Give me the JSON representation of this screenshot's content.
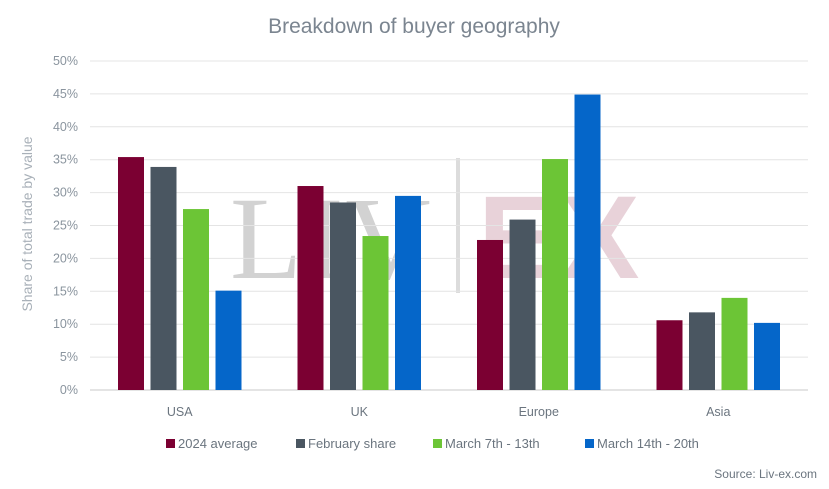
{
  "chart_data": {
    "type": "bar",
    "title": "Breakdown of buyer geography",
    "xlabel": "",
    "ylabel": "Share of total trade by value",
    "categories": [
      "USA",
      "UK",
      "Europe",
      "Asia"
    ],
    "series": [
      {
        "name": "2024 average",
        "color": "#7b0032",
        "values": [
          35.4,
          31.0,
          22.8,
          10.6
        ]
      },
      {
        "name": "February share",
        "color": "#4a5661",
        "values": [
          33.9,
          28.5,
          25.9,
          11.8
        ]
      },
      {
        "name": "March 7th - 13th",
        "color": "#6cc536",
        "values": [
          27.5,
          23.4,
          35.1,
          14.0
        ]
      },
      {
        "name": "March 14th - 20th",
        "color": "#0566c9",
        "values": [
          15.1,
          29.5,
          44.9,
          10.2
        ]
      }
    ],
    "ylim": [
      0,
      50
    ],
    "yticks": [
      "0%",
      "5%",
      "10%",
      "15%",
      "20%",
      "25%",
      "30%",
      "35%",
      "40%",
      "45%",
      "50%"
    ],
    "grid": true,
    "legend_position": "bottom",
    "source": "Source: Liv-ex.com",
    "watermark": {
      "left": "LIV",
      "right": "EX"
    }
  }
}
